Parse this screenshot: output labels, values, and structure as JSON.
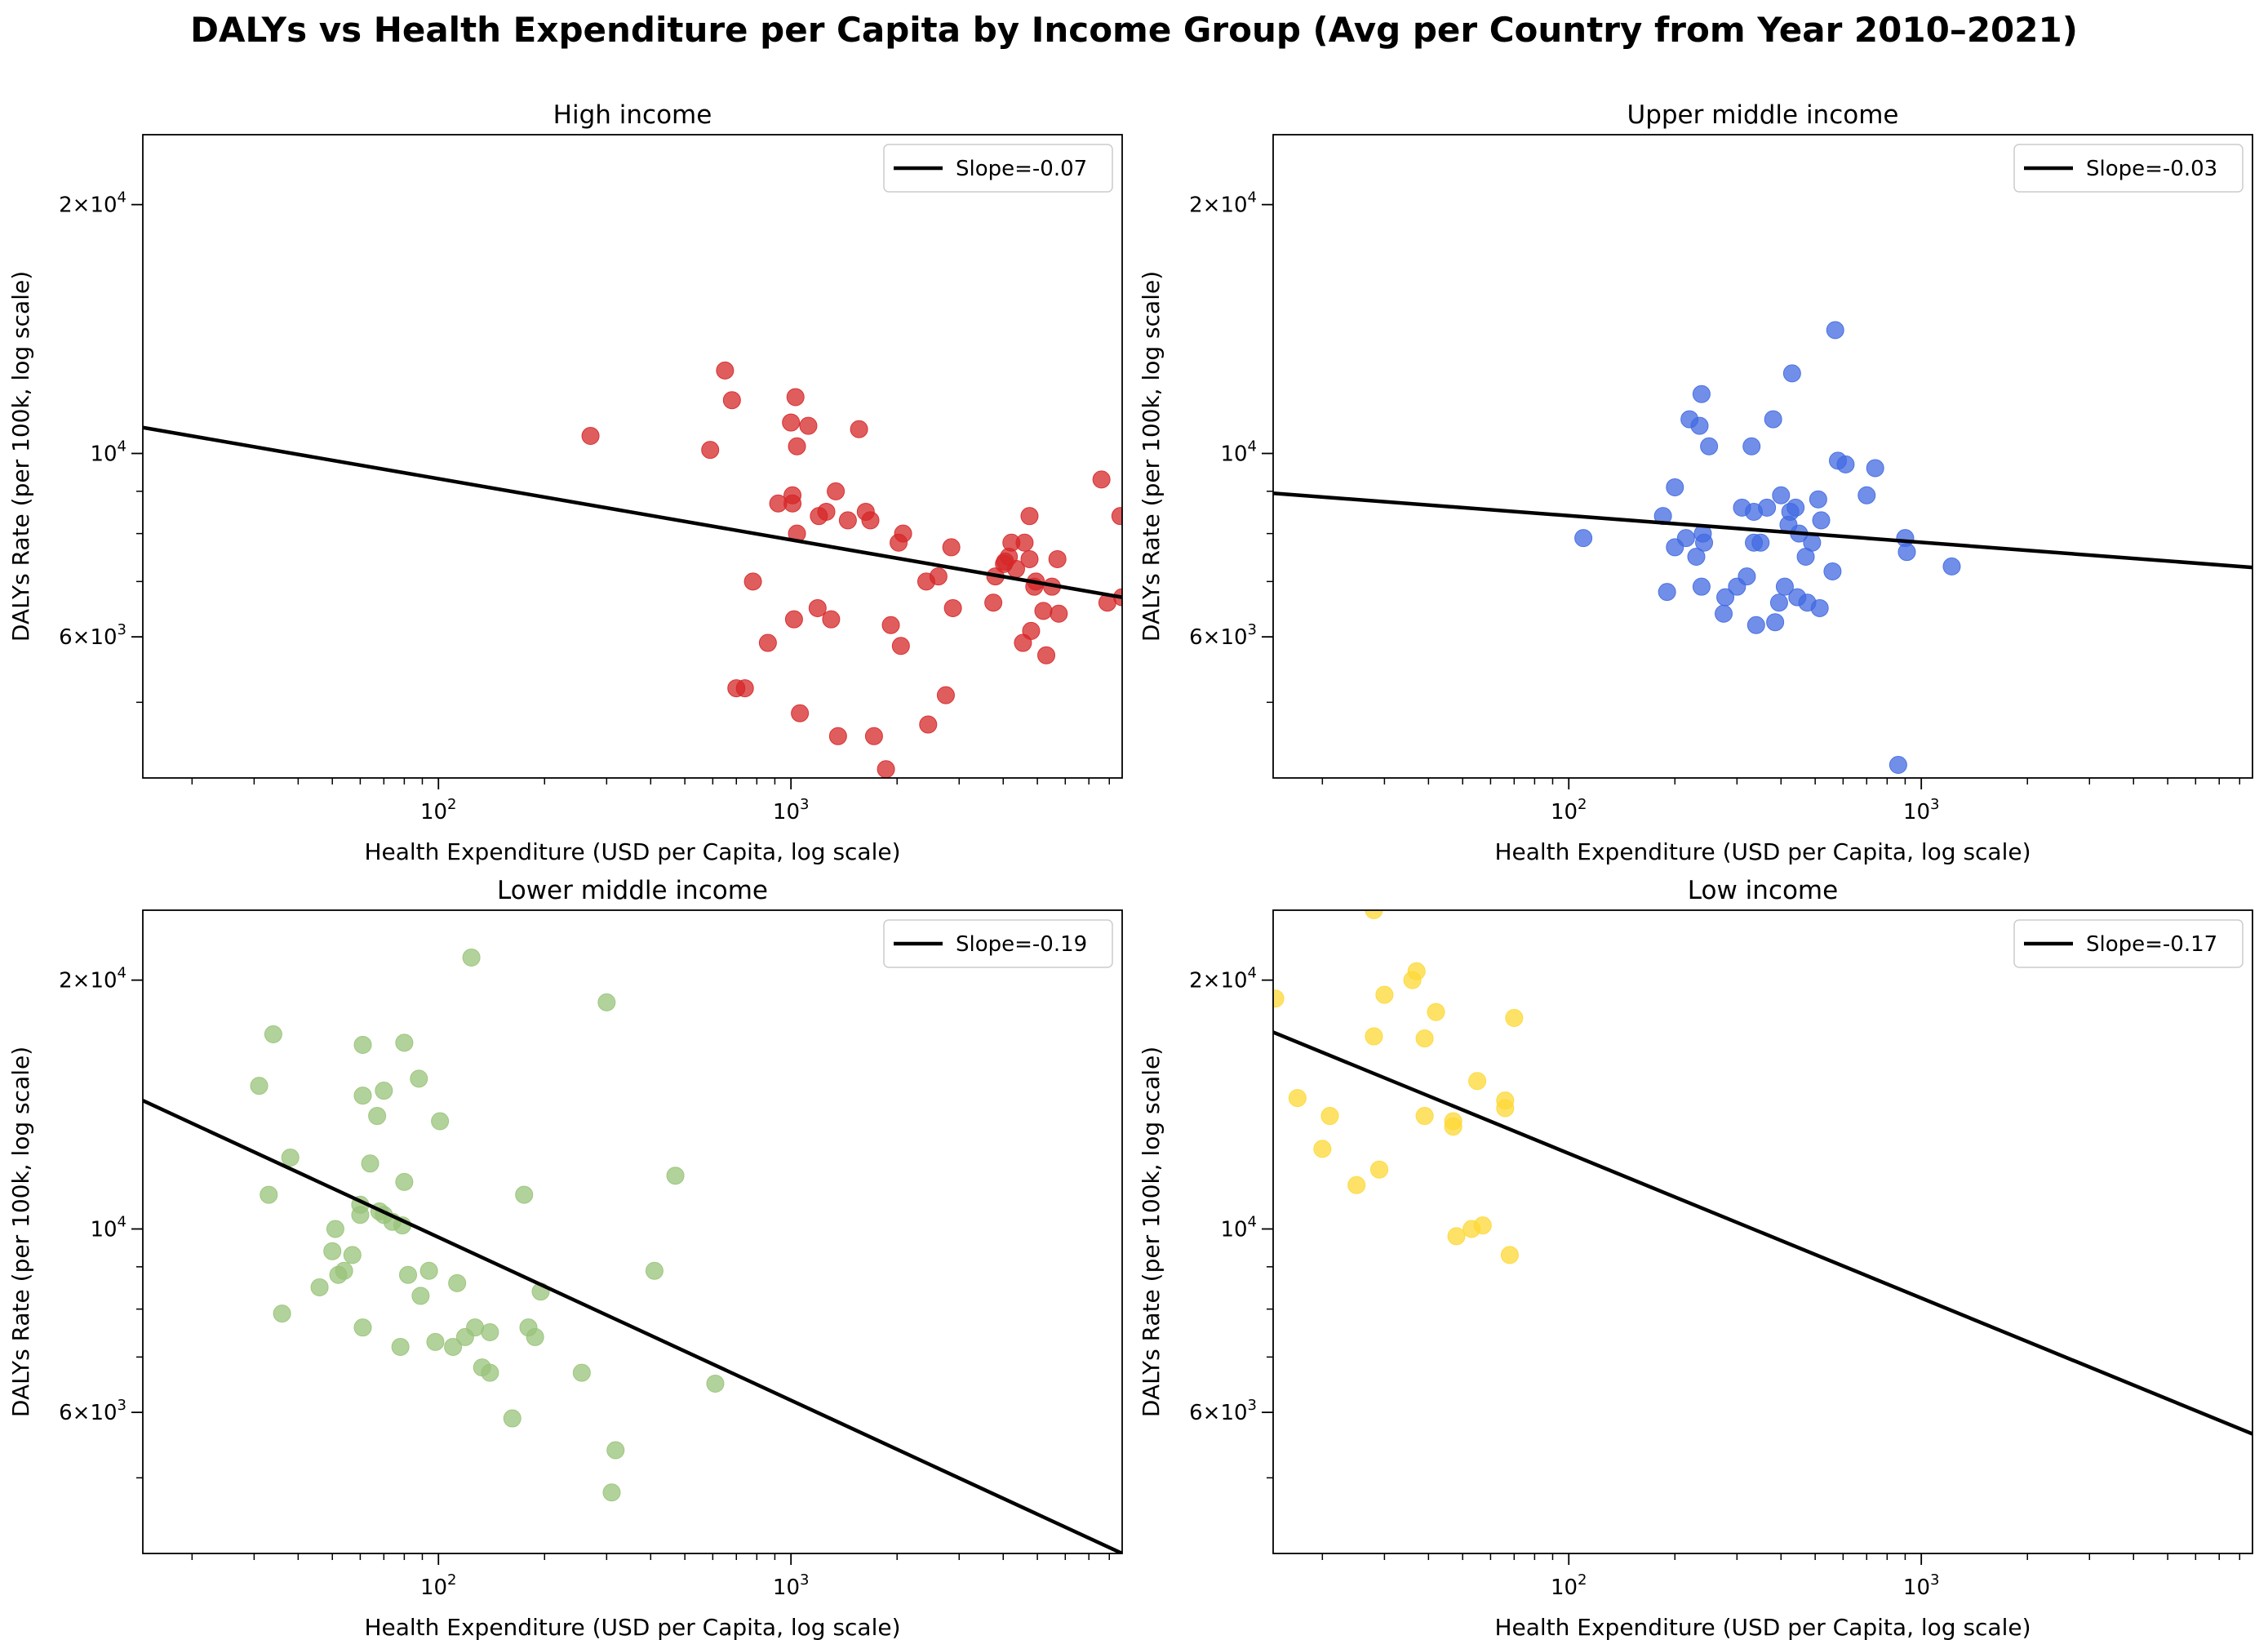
{
  "page": {
    "title": "DALYs vs Health Expenditure per Capita by Income Group (Avg per Country from Year 2010–2021)"
  },
  "chart_data": [
    {
      "type": "scatter",
      "title": "High income",
      "xlabel": "Health Expenditure (USD per Capita, log scale)",
      "ylabel": "DALYs Rate (per 100k, log scale)",
      "xscale": "log",
      "yscale": "log",
      "xlim": [
        14.5,
        8700
      ],
      "ylim": [
        4050,
        24300
      ],
      "xticks": [
        {
          "v": 100,
          "label": "10",
          "exp": "2"
        },
        {
          "v": 1000,
          "label": "10",
          "exp": "3"
        }
      ],
      "yticks": [
        {
          "v": 6000,
          "label": "6×10",
          "exp": "3"
        },
        {
          "v": 10000,
          "label": "10",
          "exp": "4"
        },
        {
          "v": 20000,
          "label": "2×10",
          "exp": "4"
        }
      ],
      "color": "#d62728",
      "legend": {
        "label": "Slope=-0.07",
        "position": "top-right"
      },
      "fit": {
        "x": [
          14.5,
          8700
        ],
        "y": [
          10750,
          6700
        ]
      },
      "points": [
        [
          270,
          10500
        ],
        [
          590,
          10100
        ],
        [
          650,
          12600
        ],
        [
          680,
          11600
        ],
        [
          700,
          5200
        ],
        [
          740,
          5200
        ],
        [
          780,
          7000
        ],
        [
          860,
          5900
        ],
        [
          920,
          8700
        ],
        [
          1000,
          10900
        ],
        [
          1010,
          8700
        ],
        [
          1010,
          8900
        ],
        [
          1020,
          6300
        ],
        [
          1030,
          11700
        ],
        [
          1040,
          10200
        ],
        [
          1040,
          8000
        ],
        [
          1060,
          4850
        ],
        [
          1120,
          10800
        ],
        [
          1190,
          6500
        ],
        [
          1200,
          8400
        ],
        [
          1260,
          8500
        ],
        [
          1300,
          6300
        ],
        [
          1340,
          9000
        ],
        [
          1360,
          4550
        ],
        [
          1450,
          8300
        ],
        [
          1560,
          10700
        ],
        [
          1630,
          8500
        ],
        [
          1680,
          8300
        ],
        [
          1720,
          4550
        ],
        [
          1860,
          4150
        ],
        [
          1920,
          6200
        ],
        [
          2020,
          7800
        ],
        [
          2050,
          5850
        ],
        [
          2080,
          8000
        ],
        [
          2420,
          7000
        ],
        [
          2450,
          4700
        ],
        [
          2620,
          7100
        ],
        [
          2750,
          5100
        ],
        [
          2850,
          7700
        ],
        [
          2880,
          6500
        ],
        [
          3750,
          6600
        ],
        [
          3800,
          7100
        ],
        [
          4020,
          7350
        ],
        [
          4050,
          7400
        ],
        [
          4150,
          7500
        ],
        [
          4220,
          7800
        ],
        [
          4350,
          7250
        ],
        [
          4550,
          5900
        ],
        [
          4600,
          7800
        ],
        [
          4750,
          8400
        ],
        [
          4750,
          7450
        ],
        [
          4800,
          6100
        ],
        [
          4900,
          6900
        ],
        [
          4950,
          7000
        ],
        [
          5200,
          6450
        ],
        [
          5300,
          5700
        ],
        [
          5500,
          6900
        ],
        [
          5700,
          7450
        ],
        [
          5750,
          6400
        ],
        [
          7600,
          9300
        ],
        [
          7900,
          6600
        ],
        [
          8600,
          8400
        ],
        [
          8700,
          6700
        ]
      ]
    },
    {
      "type": "scatter",
      "title": "Upper middle income",
      "xlabel": "Health Expenditure (USD per Capita, log scale)",
      "ylabel": "DALYs Rate (per 100k, log scale)",
      "xscale": "log",
      "yscale": "log",
      "xlim": [
        14.5,
        8700
      ],
      "ylim": [
        4050,
        24300
      ],
      "xticks": [
        {
          "v": 100,
          "label": "10",
          "exp": "2"
        },
        {
          "v": 1000,
          "label": "10",
          "exp": "3"
        }
      ],
      "yticks": [
        {
          "v": 6000,
          "label": "6×10",
          "exp": "3"
        },
        {
          "v": 10000,
          "label": "10",
          "exp": "4"
        },
        {
          "v": 20000,
          "label": "2×10",
          "exp": "4"
        }
      ],
      "color": "#4169e1",
      "legend": {
        "label": "Slope=-0.03",
        "position": "top-right"
      },
      "fit": {
        "x": [
          14.5,
          8700
        ],
        "y": [
          8950,
          7280
        ]
      },
      "points": [
        [
          110,
          7900
        ],
        [
          185,
          8400
        ],
        [
          190,
          6800
        ],
        [
          200,
          7700
        ],
        [
          200,
          9100
        ],
        [
          215,
          7900
        ],
        [
          220,
          11000
        ],
        [
          230,
          7500
        ],
        [
          235,
          10800
        ],
        [
          238,
          6900
        ],
        [
          238,
          11800
        ],
        [
          240,
          8000
        ],
        [
          242,
          7800
        ],
        [
          250,
          10200
        ],
        [
          275,
          6400
        ],
        [
          278,
          6700
        ],
        [
          300,
          6900
        ],
        [
          310,
          8600
        ],
        [
          320,
          7100
        ],
        [
          330,
          10200
        ],
        [
          335,
          8500
        ],
        [
          335,
          7800
        ],
        [
          340,
          6200
        ],
        [
          350,
          7800
        ],
        [
          365,
          8600
        ],
        [
          380,
          11000
        ],
        [
          385,
          6250
        ],
        [
          395,
          6600
        ],
        [
          400,
          8900
        ],
        [
          410,
          6900
        ],
        [
          420,
          8200
        ],
        [
          425,
          8500
        ],
        [
          430,
          12500
        ],
        [
          440,
          8600
        ],
        [
          445,
          6700
        ],
        [
          450,
          8000
        ],
        [
          470,
          7500
        ],
        [
          475,
          6600
        ],
        [
          490,
          7800
        ],
        [
          510,
          8800
        ],
        [
          515,
          6500
        ],
        [
          520,
          8300
        ],
        [
          560,
          7200
        ],
        [
          570,
          14100
        ],
        [
          580,
          9800
        ],
        [
          610,
          9700
        ],
        [
          700,
          8900
        ],
        [
          740,
          9600
        ],
        [
          860,
          4200
        ],
        [
          900,
          7900
        ],
        [
          910,
          7600
        ],
        [
          1220,
          7300
        ]
      ]
    },
    {
      "type": "scatter",
      "title": "Lower middle income",
      "xlabel": "Health Expenditure (USD per Capita, log scale)",
      "ylabel": "DALYs Rate (per 100k, log scale)",
      "xscale": "log",
      "yscale": "log",
      "xlim": [
        14.5,
        8700
      ],
      "ylim": [
        4050,
        24300
      ],
      "xticks": [
        {
          "v": 100,
          "label": "10",
          "exp": "2"
        },
        {
          "v": 1000,
          "label": "10",
          "exp": "3"
        }
      ],
      "yticks": [
        {
          "v": 6000,
          "label": "6×10",
          "exp": "3"
        },
        {
          "v": 10000,
          "label": "10",
          "exp": "4"
        },
        {
          "v": 20000,
          "label": "2×10",
          "exp": "4"
        }
      ],
      "color": "#98c379",
      "legend": {
        "label": "Slope=-0.19",
        "position": "top-right"
      },
      "fit": {
        "x": [
          14.5,
          8700
        ],
        "y": [
          14300,
          4050
        ]
      },
      "points": [
        [
          31,
          14900
        ],
        [
          33,
          11000
        ],
        [
          34,
          17200
        ],
        [
          36,
          7900
        ],
        [
          38,
          12200
        ],
        [
          46,
          8500
        ],
        [
          50,
          9400
        ],
        [
          51,
          10000
        ],
        [
          52,
          8800
        ],
        [
          54,
          8900
        ],
        [
          57,
          9300
        ],
        [
          60,
          10700
        ],
        [
          60,
          10400
        ],
        [
          61,
          14500
        ],
        [
          61,
          16700
        ],
        [
          61,
          7600
        ],
        [
          64,
          12000
        ],
        [
          67,
          13700
        ],
        [
          68,
          10500
        ],
        [
          70,
          14700
        ],
        [
          70,
          10400
        ],
        [
          74,
          10200
        ],
        [
          78,
          7200
        ],
        [
          79,
          10100
        ],
        [
          80,
          11400
        ],
        [
          80,
          16800
        ],
        [
          82,
          8800
        ],
        [
          88,
          15200
        ],
        [
          89,
          8300
        ],
        [
          94,
          8900
        ],
        [
          98,
          7300
        ],
        [
          101,
          13500
        ],
        [
          110,
          7200
        ],
        [
          113,
          8600
        ],
        [
          119,
          7400
        ],
        [
          124,
          21300
        ],
        [
          127,
          7600
        ],
        [
          133,
          6800
        ],
        [
          140,
          6700
        ],
        [
          140,
          7500
        ],
        [
          162,
          5900
        ],
        [
          175,
          11000
        ],
        [
          180,
          7600
        ],
        [
          188,
          7400
        ],
        [
          195,
          8400
        ],
        [
          255,
          6700
        ],
        [
          300,
          18800
        ],
        [
          310,
          4800
        ],
        [
          318,
          5400
        ],
        [
          410,
          8900
        ],
        [
          470,
          11600
        ],
        [
          610,
          6500
        ]
      ]
    },
    {
      "type": "scatter",
      "title": "Low income",
      "xlabel": "Health Expenditure (USD per Capita, log scale)",
      "ylabel": "DALYs Rate (per 100k, log scale)",
      "xscale": "log",
      "yscale": "log",
      "xlim": [
        14.5,
        8700
      ],
      "ylim": [
        4050,
        24300
      ],
      "xticks": [
        {
          "v": 100,
          "label": "10",
          "exp": "2"
        },
        {
          "v": 1000,
          "label": "10",
          "exp": "3"
        }
      ],
      "yticks": [
        {
          "v": 6000,
          "label": "6×10",
          "exp": "3"
        },
        {
          "v": 10000,
          "label": "10",
          "exp": "4"
        },
        {
          "v": 20000,
          "label": "2×10",
          "exp": "4"
        }
      ],
      "color": "#fdd835",
      "legend": {
        "label": "Slope=-0.17",
        "position": "top-right"
      },
      "fit": {
        "x": [
          14.5,
          8700
        ],
        "y": [
          17300,
          5650
        ]
      },
      "points": [
        [
          14.7,
          19000
        ],
        [
          17,
          14400
        ],
        [
          20,
          12500
        ],
        [
          21,
          13700
        ],
        [
          25,
          11300
        ],
        [
          28,
          17100
        ],
        [
          28,
          24300
        ],
        [
          29,
          11800
        ],
        [
          30,
          19200
        ],
        [
          36,
          20000
        ],
        [
          37,
          20500
        ],
        [
          39,
          17000
        ],
        [
          39,
          13700
        ],
        [
          42,
          18300
        ],
        [
          47,
          13500
        ],
        [
          47,
          13300
        ],
        [
          48,
          9800
        ],
        [
          53,
          10000
        ],
        [
          55,
          15100
        ],
        [
          57,
          10100
        ],
        [
          66,
          14000
        ],
        [
          66,
          14300
        ],
        [
          68,
          9300
        ],
        [
          70,
          18000
        ]
      ]
    }
  ]
}
